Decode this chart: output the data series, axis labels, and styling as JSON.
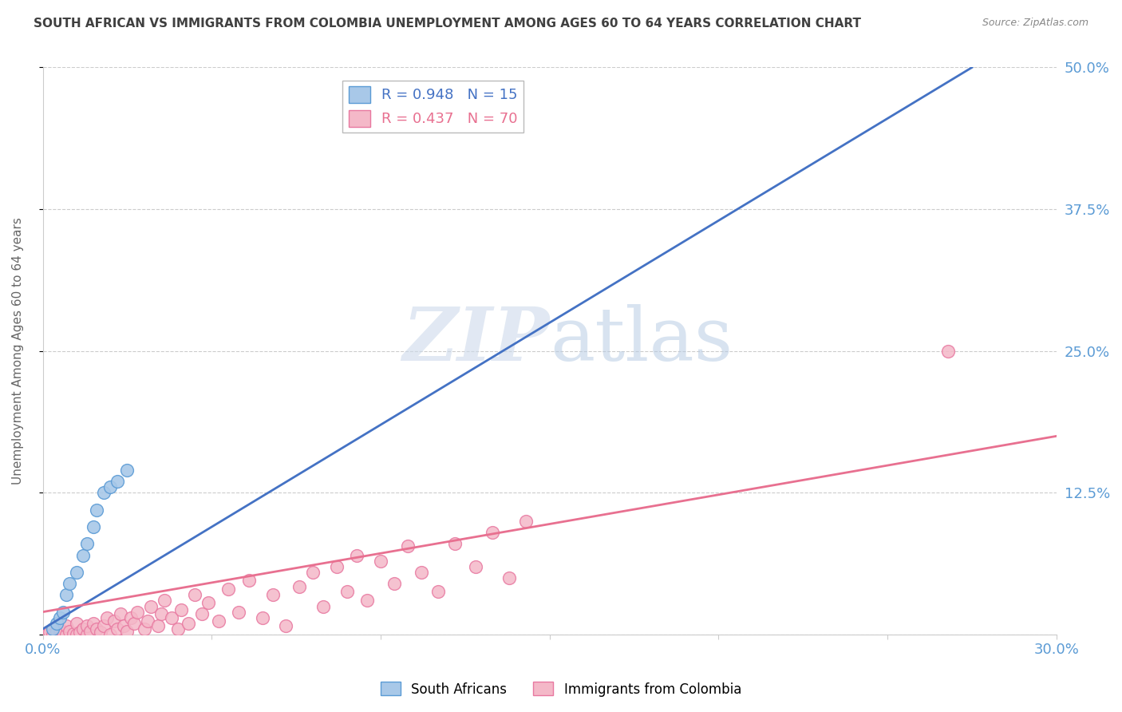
{
  "title": "SOUTH AFRICAN VS IMMIGRANTS FROM COLOMBIA UNEMPLOYMENT AMONG AGES 60 TO 64 YEARS CORRELATION CHART",
  "source": "Source: ZipAtlas.com",
  "ylabel": "Unemployment Among Ages 60 to 64 years",
  "xlim": [
    0,
    0.3
  ],
  "ylim": [
    0,
    0.5
  ],
  "xticks": [
    0.0,
    0.05,
    0.1,
    0.15,
    0.2,
    0.25,
    0.3
  ],
  "xticklabels": [
    "0.0%",
    "",
    "",
    "",
    "",
    "",
    "30.0%"
  ],
  "yticks": [
    0.0,
    0.125,
    0.25,
    0.375,
    0.5
  ],
  "yticklabels": [
    "",
    "12.5%",
    "25.0%",
    "37.5%",
    "50.0%"
  ],
  "legend_blue_label": "R = 0.948   N = 15",
  "legend_pink_label": "R = 0.437   N = 70",
  "south_africans_label": "South Africans",
  "colombia_label": "Immigrants from Colombia",
  "blue_fill": "#a8c8e8",
  "blue_edge": "#5b9bd5",
  "pink_fill": "#f4b8c8",
  "pink_edge": "#e878a0",
  "blue_line_color": "#4472c4",
  "pink_line_color": "#e87090",
  "background_color": "#ffffff",
  "grid_color": "#cccccc",
  "title_color": "#404040",
  "axis_label_color": "#5b9bd5",
  "sa_x": [
    0.003,
    0.004,
    0.005,
    0.006,
    0.007,
    0.008,
    0.01,
    0.012,
    0.013,
    0.015,
    0.016,
    0.018,
    0.02,
    0.022,
    0.025
  ],
  "sa_y": [
    0.005,
    0.01,
    0.015,
    0.02,
    0.035,
    0.045,
    0.055,
    0.07,
    0.08,
    0.095,
    0.11,
    0.125,
    0.13,
    0.135,
    0.145
  ],
  "co_x": [
    0.001,
    0.002,
    0.003,
    0.004,
    0.005,
    0.005,
    0.006,
    0.007,
    0.007,
    0.008,
    0.009,
    0.01,
    0.01,
    0.011,
    0.012,
    0.013,
    0.013,
    0.014,
    0.015,
    0.016,
    0.017,
    0.018,
    0.019,
    0.02,
    0.021,
    0.022,
    0.023,
    0.024,
    0.025,
    0.026,
    0.027,
    0.028,
    0.03,
    0.031,
    0.032,
    0.034,
    0.035,
    0.036,
    0.038,
    0.04,
    0.041,
    0.043,
    0.045,
    0.047,
    0.049,
    0.052,
    0.055,
    0.058,
    0.061,
    0.065,
    0.068,
    0.072,
    0.076,
    0.08,
    0.083,
    0.087,
    0.09,
    0.093,
    0.096,
    0.1,
    0.104,
    0.108,
    0.112,
    0.117,
    0.122,
    0.128,
    0.133,
    0.138,
    0.143,
    0.268
  ],
  "co_y": [
    0.0,
    0.002,
    0.0,
    0.003,
    0.0,
    0.005,
    0.002,
    0.0,
    0.008,
    0.003,
    0.001,
    0.0,
    0.01,
    0.002,
    0.005,
    0.0,
    0.008,
    0.003,
    0.01,
    0.005,
    0.002,
    0.008,
    0.015,
    0.0,
    0.012,
    0.005,
    0.018,
    0.008,
    0.003,
    0.015,
    0.01,
    0.02,
    0.005,
    0.012,
    0.025,
    0.008,
    0.018,
    0.03,
    0.015,
    0.005,
    0.022,
    0.01,
    0.035,
    0.018,
    0.028,
    0.012,
    0.04,
    0.02,
    0.048,
    0.015,
    0.035,
    0.008,
    0.042,
    0.055,
    0.025,
    0.06,
    0.038,
    0.07,
    0.03,
    0.065,
    0.045,
    0.078,
    0.055,
    0.038,
    0.08,
    0.06,
    0.09,
    0.05,
    0.1,
    0.25
  ],
  "blue_line_x": [
    0.0,
    0.275
  ],
  "blue_line_y": [
    0.005,
    0.5
  ],
  "pink_line_x": [
    0.0,
    0.3
  ],
  "pink_line_y": [
    0.02,
    0.175
  ]
}
